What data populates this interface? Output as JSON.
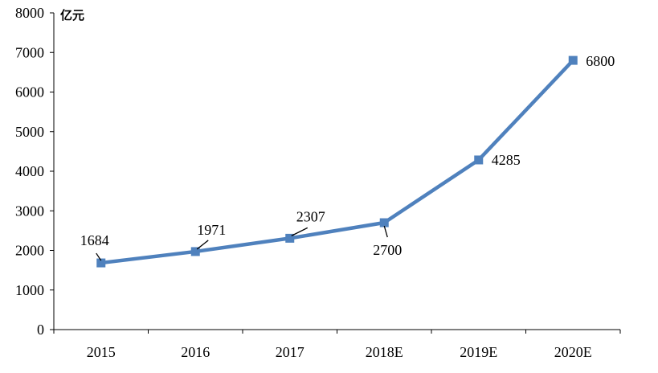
{
  "chart_data": {
    "type": "line",
    "categories": [
      "2015",
      "2016",
      "2017",
      "2018E",
      "2019E",
      "2020E"
    ],
    "series": [
      {
        "values": [
          1684,
          1971,
          2307,
          2700,
          4285,
          6800
        ]
      }
    ],
    "data_labels": [
      "1684",
      "1971",
      "2307",
      "2700",
      "4285",
      "6800"
    ],
    "ylabel": "亿元",
    "ylim": [
      0,
      8000
    ],
    "yticks": [
      0,
      1000,
      2000,
      3000,
      4000,
      5000,
      6000,
      7000,
      8000
    ],
    "ytick_labels": [
      "0",
      "1000",
      "2000",
      "3000",
      "4000",
      "5000",
      "6000",
      "7000",
      "8000"
    ],
    "grid": false,
    "line_color": "#4F81BD",
    "marker": "square"
  }
}
